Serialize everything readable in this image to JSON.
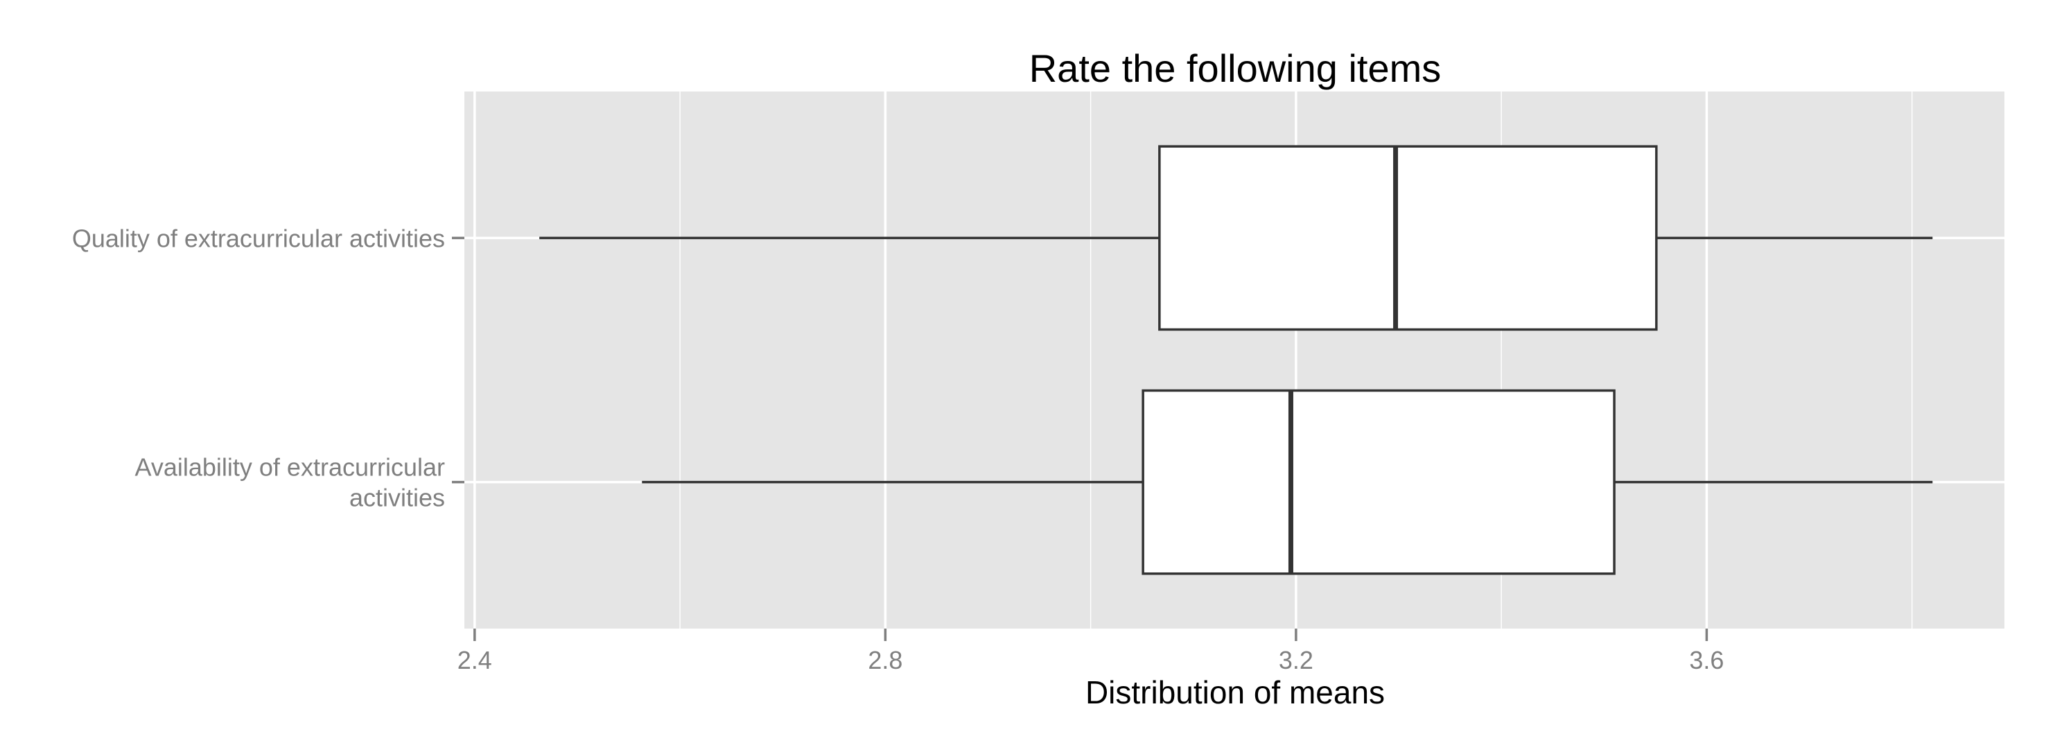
{
  "chart_data": {
    "type": "boxplot",
    "orientation": "horizontal",
    "title": "Rate the following items",
    "xlabel": "Distribution of means",
    "ylabel": "",
    "xlim": [
      2.39,
      3.89
    ],
    "x_ticks": [
      "2.4",
      "2.8",
      "3.2",
      "3.6"
    ],
    "x_tick_values": [
      2.4,
      2.8,
      3.2,
      3.6
    ],
    "x_minor_gridlines": [
      2.6,
      3.0,
      3.4,
      3.8
    ],
    "grid": true,
    "background_color": "#e5e5e5",
    "gridline_color": "#ffffff",
    "box_fill": "#ffffff",
    "box_stroke": "#333333",
    "categories": [
      {
        "label_lines": [
          "Quality of extracurricular activities"
        ],
        "stats": {
          "min": 2.463,
          "q1": 3.067,
          "median": 3.297,
          "q3": 3.551,
          "max": 3.82
        }
      },
      {
        "label_lines": [
          "Availability of extracurricular",
          "activities"
        ],
        "stats": {
          "min": 2.563,
          "q1": 3.051,
          "median": 3.195,
          "q3": 3.51,
          "max": 3.82
        }
      }
    ]
  }
}
